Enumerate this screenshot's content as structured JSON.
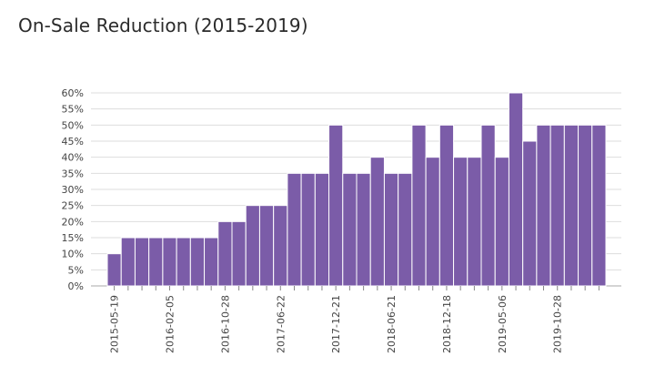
{
  "chart_data": {
    "type": "bar",
    "title": "On-Sale Reduction (2015-2019)",
    "xlabel": "",
    "ylabel": "",
    "ylim": [
      0,
      60
    ],
    "y_ticks": [
      0,
      5,
      10,
      15,
      20,
      25,
      30,
      35,
      40,
      45,
      50,
      55,
      60
    ],
    "y_tick_suffix": "%",
    "x_tick_labels": [
      "2015-05-19",
      "2016-02-05",
      "2016-10-28",
      "2017-06-22",
      "2017-12-21",
      "2018-06-21",
      "2018-12-18",
      "2019-05-06",
      "2019-10-28"
    ],
    "x_tick_every": 4,
    "color": "#7b5ca8",
    "grid": true,
    "values": [
      10,
      15,
      15,
      15,
      15,
      15,
      15,
      15,
      20,
      20,
      25,
      25,
      25,
      35,
      35,
      35,
      50,
      35,
      35,
      40,
      35,
      35,
      50,
      40,
      50,
      40,
      40,
      50,
      40,
      60,
      45,
      50,
      50,
      50,
      50,
      50
    ]
  }
}
